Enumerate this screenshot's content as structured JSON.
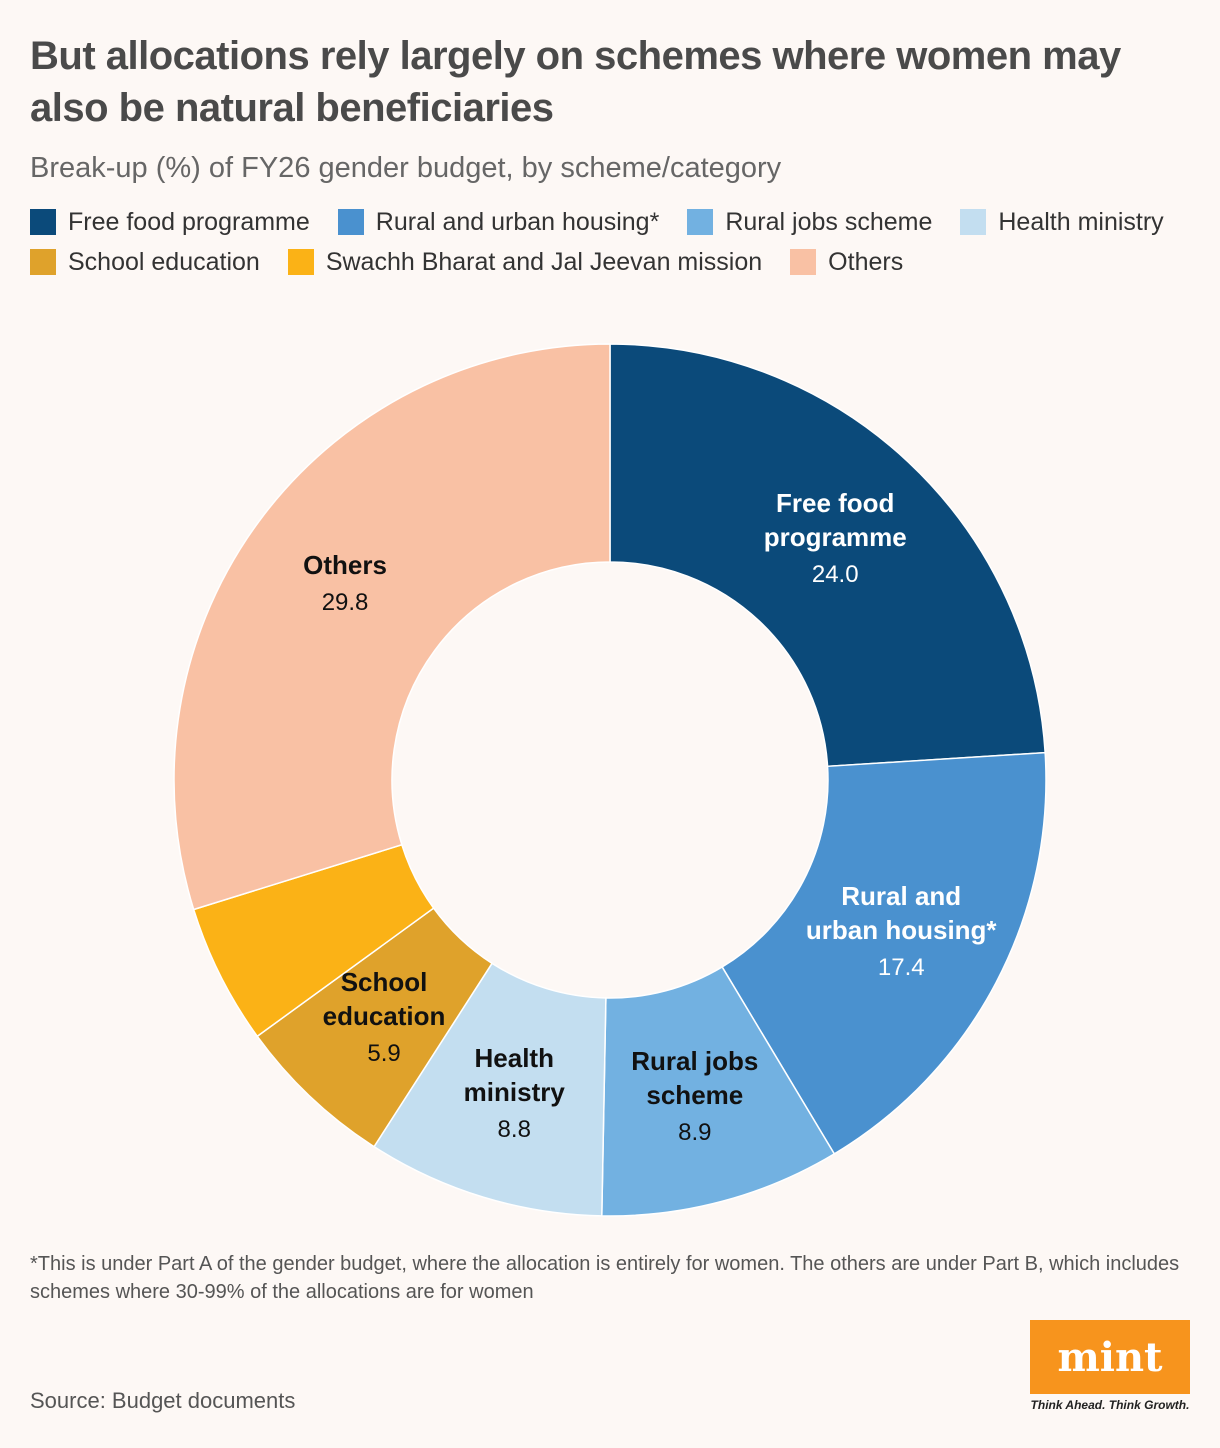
{
  "title": "But allocations rely largely on schemes where women may also be natural beneficiaries",
  "subtitle": "Break-up (%) of FY26 gender budget, by scheme/category",
  "legend": [
    {
      "label": "Free food programme",
      "color": "#0b4a7a"
    },
    {
      "label": "Rural and urban housing*",
      "color": "#4a91cf"
    },
    {
      "label": "Rural jobs scheme",
      "color": "#72b1e1"
    },
    {
      "label": "Health ministry",
      "color": "#c3def0"
    },
    {
      "label": "School education",
      "color": "#dfa22b"
    },
    {
      "label": "Swachh Bharat and Jal Jeevan mission",
      "color": "#fbb216"
    },
    {
      "label": "Others",
      "color": "#f9c1a4"
    }
  ],
  "chart_data": {
    "type": "pie",
    "variant": "donut",
    "title": "Break-up (%) of FY26 gender budget, by scheme/category",
    "categories": [
      "Free food programme",
      "Rural and urban housing*",
      "Rural jobs scheme",
      "Health ministry",
      "School education",
      "Swachh Bharat and Jal Jeevan mission",
      "Others"
    ],
    "values": [
      24.0,
      17.4,
      8.9,
      8.8,
      5.9,
      5.2,
      29.8
    ],
    "colors": [
      "#0b4a7a",
      "#4a91cf",
      "#72b1e1",
      "#c3def0",
      "#dfa22b",
      "#fbb216",
      "#f9c1a4"
    ],
    "slice_labels": [
      {
        "lines": [
          "Free food",
          "programme"
        ],
        "value": "24.0",
        "text_color": "#ffffff"
      },
      {
        "lines": [
          "Rural and",
          "urban housing*"
        ],
        "value": "17.4",
        "text_color": "#ffffff"
      },
      {
        "lines": [
          "Rural jobs",
          "scheme"
        ],
        "value": "8.9",
        "text_color": "#111111"
      },
      {
        "lines": [
          "Health",
          "ministry"
        ],
        "value": "8.8",
        "text_color": "#111111"
      },
      {
        "lines": [
          "School",
          "education"
        ],
        "value": "5.9",
        "text_color": "#111111"
      },
      null,
      {
        "lines": [
          "Others"
        ],
        "value": "29.8",
        "text_color": "#111111"
      }
    ]
  },
  "footnote": "*This is under Part A of the gender budget, where the allocation is entirely for women. The others are under Part B, which includes schemes where 30-99% of the allocations are for women",
  "source": "Source: Budget documents",
  "logo": {
    "brand": "mint",
    "tagline": "Think Ahead. Think Growth."
  }
}
